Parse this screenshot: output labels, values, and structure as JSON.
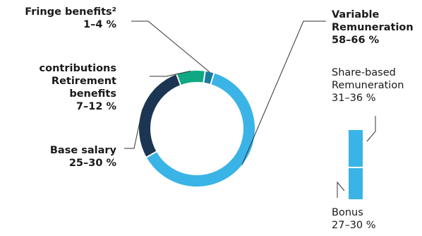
{
  "chart_data": {
    "type": "donut",
    "title": "",
    "series": [
      {
        "name": "Variable Remuneration",
        "label": "Variable\nRemuneration",
        "range": "58–66 %",
        "value": 62,
        "color": "#3ab4e6"
      },
      {
        "name": "Base salary",
        "label": "Base salary",
        "range": "25–30 %",
        "value": 27.5,
        "color": "#1c3553"
      },
      {
        "name": "Retirement benefits",
        "label": "contributions\nRetirement\nbenefits",
        "range": "7–12 %",
        "value": 8,
        "color": "#0fa882"
      },
      {
        "name": "Fringe benefits²",
        "label": "Fringe benefits²",
        "range": "1–4 %",
        "value": 2.5,
        "color": "#1a7aa0"
      }
    ],
    "breakdown": {
      "parent": "Variable Remuneration",
      "items": [
        {
          "name": "Share-based Remuneration",
          "label": "Share-based\nRemuneration",
          "range": "31–36 %",
          "value": 33.5,
          "color": "#3ab4e6"
        },
        {
          "name": "Bonus",
          "label": "Bonus",
          "range": "27–30 %",
          "value": 28.5,
          "color": "#3ab4e6"
        }
      ]
    },
    "colors": {
      "leader": "#333333",
      "gap": "#ffffff"
    }
  }
}
